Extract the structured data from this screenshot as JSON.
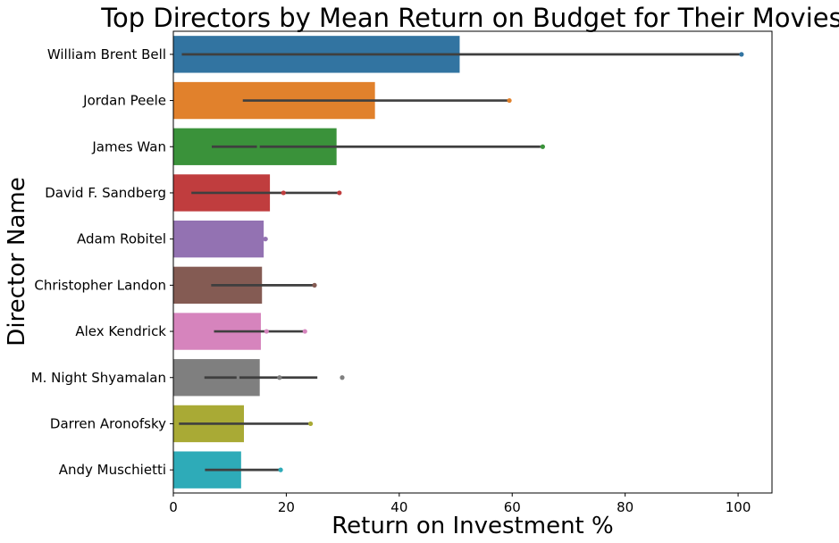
{
  "chart_data": {
    "type": "bar",
    "orientation": "horizontal",
    "title": "Top Directors by Mean Return on Budget for Their Movies",
    "xlabel": "Return on Investment %",
    "ylabel": "Director Name",
    "xlim": [
      0,
      106
    ],
    "xticks": [
      0,
      20,
      40,
      60,
      80,
      100
    ],
    "grid": false,
    "categories": [
      "William Brent Bell",
      "Jordan Peele",
      "James Wan",
      "David F. Sandberg",
      "Adam Robitel",
      "Christopher Landon",
      "Alex Kendrick",
      "M. Night Shyamalan",
      "Darren Aronofsky",
      "Andy Muschietti"
    ],
    "values": [
      50.7,
      35.7,
      28.9,
      17.1,
      16.0,
      15.7,
      15.5,
      15.3,
      12.5,
      12.0
    ],
    "colors": [
      "#3274a1",
      "#e1812c",
      "#3a923a",
      "#c03d3e",
      "#9372b2",
      "#845b53",
      "#d684bd",
      "#7f7f7f",
      "#a9aa35",
      "#2eabb8"
    ],
    "ci": [
      [
        1.5,
        100.5
      ],
      [
        12.3,
        59.3
      ],
      [
        6.8,
        65.0
      ],
      [
        3.2,
        29.3
      ],
      [
        16.0,
        16.7
      ],
      [
        6.7,
        24.9
      ],
      [
        7.2,
        23.0
      ],
      [
        5.5,
        25.5
      ],
      [
        1.0,
        24.3
      ],
      [
        5.6,
        18.7
      ]
    ],
    "ci_gaps": [
      [],
      [],
      [
        [
          14.8,
          15.3
        ]
      ],
      [],
      [],
      [],
      [],
      [
        [
          11.2,
          11.7
        ]
      ],
      [],
      []
    ],
    "outliers": [
      [
        100.6
      ],
      [
        59.5
      ],
      [
        65.4
      ],
      [
        19.5,
        29.4
      ],
      [
        16.3
      ],
      [
        25.0
      ],
      [
        16.5,
        23.3
      ],
      [
        18.8,
        29.9
      ],
      [
        24.3
      ],
      [
        19.0
      ]
    ]
  }
}
